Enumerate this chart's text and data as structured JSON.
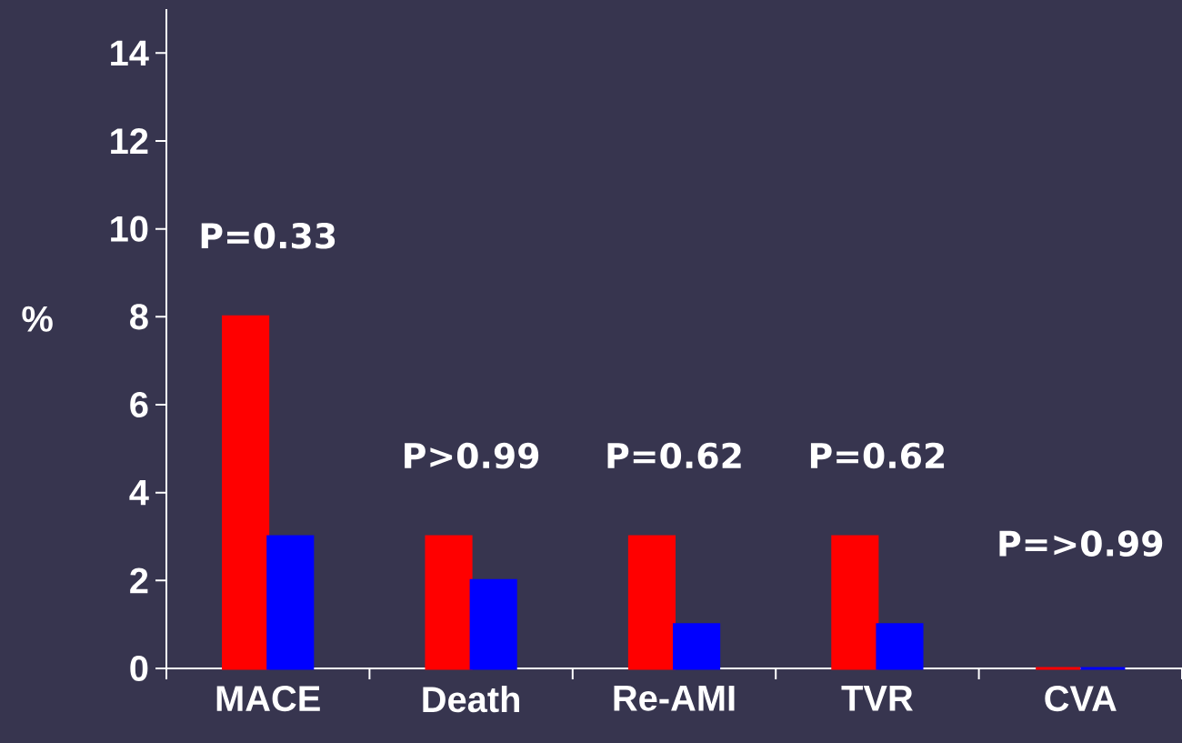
{
  "chart_data": {
    "type": "bar",
    "ylabel": "%",
    "categories": [
      "MACE",
      "Death",
      "Re-AMI",
      "TVR",
      "CVA"
    ],
    "series": [
      {
        "color": "#ff0000",
        "values": [
          8,
          3,
          3,
          3,
          0
        ]
      },
      {
        "color": "#0000ff",
        "values": [
          3,
          2,
          1,
          1,
          0
        ]
      }
    ],
    "ylim": [
      0,
      15
    ],
    "yticks": [
      0,
      2,
      4,
      6,
      8,
      10,
      12,
      14
    ],
    "annotations": [
      "P=0.33",
      "P>0.99",
      "P=0.62",
      "P=0.62",
      "P=>0.99"
    ]
  }
}
